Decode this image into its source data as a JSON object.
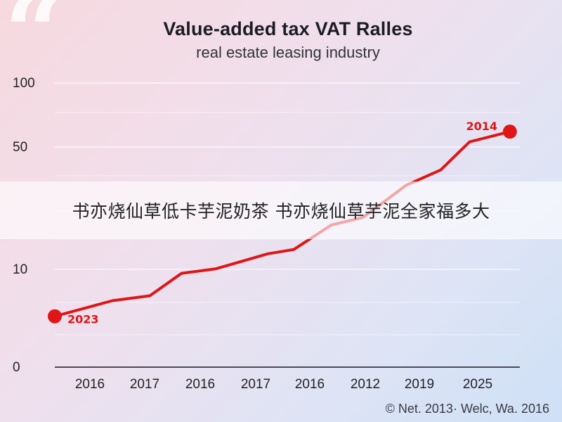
{
  "chart_data": {
    "type": "line",
    "title": "Value-added tax VAT Ralles",
    "subtitle": "real estate leasing industry",
    "x_tick_labels": [
      "2016",
      "2017",
      "2016",
      "2017",
      "2016",
      "2012",
      "2019",
      "2025"
    ],
    "y_tick_labels": [
      "0",
      "10",
      "50",
      "100"
    ],
    "y_tick_values": [
      0,
      10,
      50,
      100
    ],
    "series": [
      {
        "color": "#e01515",
        "points": [
          {
            "x": 0.0,
            "y": 5.2
          },
          {
            "x": 1.0,
            "y": 6.8
          },
          {
            "x": 1.65,
            "y": 7.3
          },
          {
            "x": 2.2,
            "y": 9.6
          },
          {
            "x": 2.8,
            "y": 10.2
          },
          {
            "x": 3.7,
            "y": 15.1
          },
          {
            "x": 4.15,
            "y": 16.5
          },
          {
            "x": 4.8,
            "y": 24.5
          },
          {
            "x": 5.35,
            "y": 27.0
          },
          {
            "x": 6.1,
            "y": 37.5
          },
          {
            "x": 6.7,
            "y": 42.5
          },
          {
            "x": 7.2,
            "y": 54.0
          },
          {
            "x": 7.9,
            "y": 62.0
          }
        ]
      }
    ],
    "annotations": [
      {
        "text": "2023",
        "point_index": 0
      },
      {
        "text": "2014",
        "point_index": 12
      }
    ],
    "grid": true,
    "legend": "none"
  },
  "overlay_banner": "书亦烧仙草低卡芋泥奶茶 书亦烧仙草芋泥全家福多大",
  "footer": "© Net. 2013· Welc, Wa. 2016"
}
